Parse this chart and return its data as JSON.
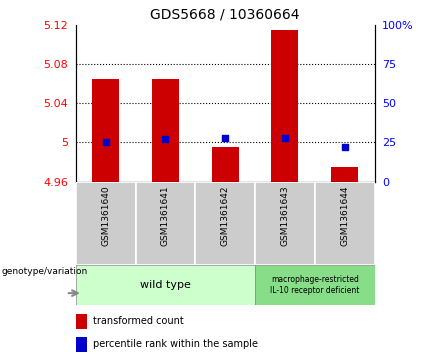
{
  "title": "GDS5668 / 10360664",
  "categories": [
    "GSM1361640",
    "GSM1361641",
    "GSM1361642",
    "GSM1361643",
    "GSM1361644"
  ],
  "bar_values": [
    5.065,
    5.065,
    4.995,
    5.115,
    4.975
  ],
  "percentile_values": [
    25,
    27,
    28,
    28,
    22
  ],
  "ylim_left": [
    4.96,
    5.12
  ],
  "ylim_right": [
    0,
    100
  ],
  "yticks_left": [
    4.96,
    5.0,
    5.04,
    5.08,
    5.12
  ],
  "yticks_right": [
    0,
    25,
    50,
    75,
    100
  ],
  "ytick_labels_left": [
    "4.96",
    "5",
    "5.04",
    "5.08",
    "5.12"
  ],
  "ytick_labels_right": [
    "0",
    "25",
    "50",
    "75",
    "100%"
  ],
  "bar_color": "#cc0000",
  "dot_color": "#0000cc",
  "bar_bottom": 4.96,
  "plot_bg": "#ffffff",
  "group1_label": "wild type",
  "group2_label": "macrophage-restricted\nIL-10 receptor deficient",
  "group1_color": "#ccffcc",
  "group2_color": "#88dd88",
  "label_row_color": "#cccccc",
  "legend_red_label": "transformed count",
  "legend_blue_label": "percentile rank within the sample",
  "genotype_label": "genotype/variation"
}
